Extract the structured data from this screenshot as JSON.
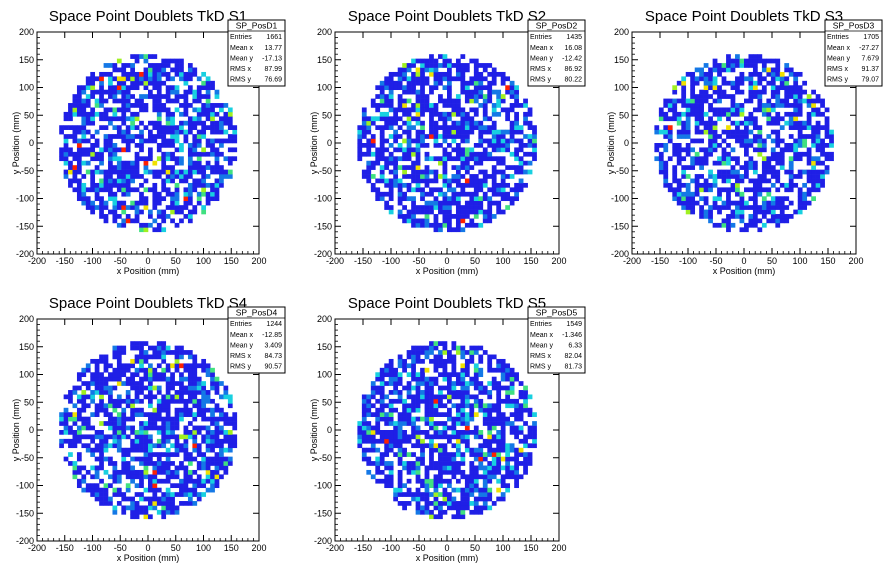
{
  "chart_data": [
    {
      "type": "heatmap",
      "title": "Space Point Doublets TkD S1",
      "xlabel": "x Position (mm)",
      "ylabel": "y Position (mm)",
      "xlim": [
        -200,
        200
      ],
      "ylim": [
        -200,
        200
      ],
      "xticks": [
        -200,
        -150,
        -100,
        -50,
        0,
        50,
        100,
        150,
        200
      ],
      "yticks": [
        -200,
        -150,
        -100,
        -50,
        0,
        50,
        100,
        150,
        200
      ],
      "stats": {
        "name": "SP_PosD1",
        "rows": [
          {
            "label": "Entries",
            "value": "1661"
          },
          {
            "label": "Mean x",
            "value": "13.77"
          },
          {
            "label": "Mean y",
            "value": "-17.13"
          },
          {
            "label": "RMS x",
            "value": "87.99"
          },
          {
            "label": "RMS y",
            "value": "76.69"
          }
        ]
      },
      "fill_radius": 160,
      "grid": false
    },
    {
      "type": "heatmap",
      "title": "Space Point Doublets TkD S2",
      "xlabel": "x Position (mm)",
      "ylabel": "y Position (mm)",
      "xlim": [
        -200,
        200
      ],
      "ylim": [
        -200,
        200
      ],
      "xticks": [
        -200,
        -150,
        -100,
        -50,
        0,
        50,
        100,
        150,
        200
      ],
      "yticks": [
        -200,
        -150,
        -100,
        -50,
        0,
        50,
        100,
        150,
        200
      ],
      "stats": {
        "name": "SP_PosD2",
        "rows": [
          {
            "label": "Entries",
            "value": "1435"
          },
          {
            "label": "Mean x",
            "value": "16.08"
          },
          {
            "label": "Mean y",
            "value": "-12.42"
          },
          {
            "label": "RMS x",
            "value": "86.92"
          },
          {
            "label": "RMS y",
            "value": "80.22"
          }
        ]
      },
      "fill_radius": 160,
      "grid": false
    },
    {
      "type": "heatmap",
      "title": "Space Point Doublets TkD S3",
      "xlabel": "x Position (mm)",
      "ylabel": "y Position (mm)",
      "xlim": [
        -200,
        200
      ],
      "ylim": [
        -200,
        200
      ],
      "xticks": [
        -200,
        -150,
        -100,
        -50,
        0,
        50,
        100,
        150,
        200
      ],
      "yticks": [
        -200,
        -150,
        -100,
        -50,
        0,
        50,
        100,
        150,
        200
      ],
      "stats": {
        "name": "SP_PosD3",
        "rows": [
          {
            "label": "Entries",
            "value": "1705"
          },
          {
            "label": "Mean x",
            "value": "-27.27"
          },
          {
            "label": "Mean y",
            "value": "7.679"
          },
          {
            "label": "RMS x",
            "value": "91.37"
          },
          {
            "label": "RMS y",
            "value": "79.07"
          }
        ]
      },
      "fill_radius": 160,
      "grid": false
    },
    {
      "type": "heatmap",
      "title": "Space Point Doublets TkD S4",
      "xlabel": "x Position (mm)",
      "ylabel": "y Position (mm)",
      "xlim": [
        -200,
        200
      ],
      "ylim": [
        -200,
        200
      ],
      "xticks": [
        -200,
        -150,
        -100,
        -50,
        0,
        50,
        100,
        150,
        200
      ],
      "yticks": [
        -200,
        -150,
        -100,
        -50,
        0,
        50,
        100,
        150,
        200
      ],
      "stats": {
        "name": "SP_PosD4",
        "rows": [
          {
            "label": "Entries",
            "value": "1244"
          },
          {
            "label": "Mean x",
            "value": "-12.85"
          },
          {
            "label": "Mean y",
            "value": "3.409"
          },
          {
            "label": "RMS x",
            "value": "84.73"
          },
          {
            "label": "RMS y",
            "value": "90.57"
          }
        ]
      },
      "fill_radius": 160,
      "grid": false
    },
    {
      "type": "heatmap",
      "title": "Space Point Doublets TkD S5",
      "xlabel": "x Position (mm)",
      "ylabel": "y Position (mm)",
      "xlim": [
        -200,
        200
      ],
      "ylim": [
        -200,
        200
      ],
      "xticks": [
        -200,
        -150,
        -100,
        -50,
        0,
        50,
        100,
        150,
        200
      ],
      "yticks": [
        -200,
        -150,
        -100,
        -50,
        0,
        50,
        100,
        150,
        200
      ],
      "stats": {
        "name": "SP_PosD5",
        "rows": [
          {
            "label": "Entries",
            "value": "1549"
          },
          {
            "label": "Mean x",
            "value": "-1.346"
          },
          {
            "label": "Mean y",
            "value": "6.33"
          },
          {
            "label": "RMS x",
            "value": "82.04"
          },
          {
            "label": "RMS y",
            "value": "81.73"
          }
        ]
      },
      "fill_radius": 160,
      "grid": false
    }
  ],
  "colors": {
    "scale": [
      "#1f1fe6",
      "#1478e6",
      "#18d0e0",
      "#40e080",
      "#a0f020",
      "#f0e000",
      "#ff2000"
    ],
    "axis": "#000000",
    "background": "#ffffff"
  }
}
